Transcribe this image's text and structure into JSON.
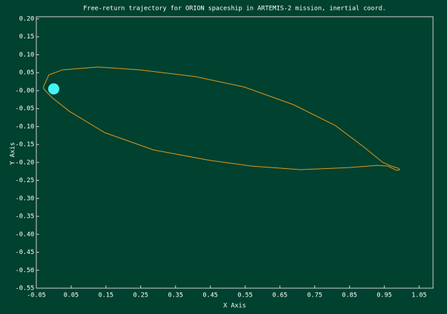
{
  "chart_data": {
    "type": "line",
    "title": "Free-return trajectory for ORION spaceship in ARTEMIS-2 mission, inertial coord.",
    "x_label": "X Axis",
    "y_label": "Y Axis",
    "xlim": [
      -0.05,
      1.09
    ],
    "ylim": [
      -0.55,
      0.2
    ],
    "xticks": [
      -0.05,
      0.05,
      0.15,
      0.25,
      0.35,
      0.45,
      0.55,
      0.65,
      0.75,
      0.85,
      0.95,
      1.05
    ],
    "yticks": [
      {
        "value": 0.2,
        "label": "0.20"
      },
      0.15,
      {
        "value": 0.1,
        "label": "0.10"
      },
      0.05,
      {
        "value": 0,
        "label": "-0.00"
      },
      -0.05,
      {
        "value": -0.1,
        "label": "-0.10"
      },
      -0.15,
      {
        "value": -0.2,
        "label": "-0.20"
      },
      -0.25,
      {
        "value": -0.3,
        "label": "-0.30"
      },
      -0.35,
      {
        "value": -0.4,
        "label": "-0.40"
      },
      -0.45,
      {
        "value": -0.5,
        "label": "-0.50"
      },
      -0.55
    ],
    "series": [
      {
        "type": "line",
        "color": "#e89a1c",
        "x": [
          -0.03,
          -0.014,
          0.026,
          0.127,
          0.247,
          0.408,
          0.548,
          0.689,
          0.809,
          0.89,
          0.946,
          0.97,
          0.99,
          0.994,
          0.986,
          0.96,
          0.93,
          0.85,
          0.709,
          0.568,
          0.448,
          0.287,
          0.147,
          0.046,
          -0.004,
          -0.028,
          -0.03
        ],
        "values": [
          0.01,
          0.044,
          0.058,
          0.066,
          0.058,
          0.039,
          0.01,
          -0.039,
          -0.097,
          -0.156,
          -0.2,
          -0.21,
          -0.216,
          -0.22,
          -0.222,
          -0.21,
          -0.208,
          -0.214,
          -0.22,
          -0.21,
          -0.194,
          -0.165,
          -0.117,
          -0.058,
          -0.02,
          0.004,
          0.01
        ]
      },
      {
        "type": "scatter",
        "color": "#44f4f4",
        "x": [
          0.0
        ],
        "values": [
          0.005
        ]
      }
    ]
  }
}
